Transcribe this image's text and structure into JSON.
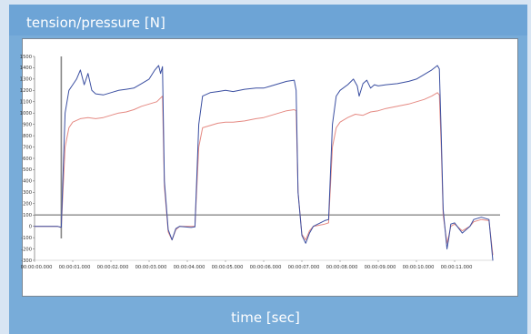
{
  "colors": {
    "background": "#d8e5f3",
    "panel": "#78acd9",
    "plot_bg": "#ffffff",
    "tension": "#3b4fa1",
    "pressure": "#e58a83",
    "reference": "#888888"
  },
  "chart_data": {
    "type": "line",
    "title": "",
    "ylabel": "tension/pressure [N]",
    "xlabel": "time [sec]",
    "ylim": [
      -300,
      1500
    ],
    "xlim": [
      0,
      12
    ],
    "y_ticks": [
      1500,
      1400,
      1300,
      1200,
      1100,
      1000,
      900,
      800,
      700,
      600,
      500,
      400,
      300,
      200,
      100,
      0,
      -100,
      -200,
      -300
    ],
    "x_ticks": [
      {
        "value": 0,
        "label": "00:00:00.000"
      },
      {
        "value": 1,
        "label": "00:00:01.000"
      },
      {
        "value": 2,
        "label": "00:00:02.000"
      },
      {
        "value": 3,
        "label": "00:00:03.000"
      },
      {
        "value": 4,
        "label": "00:00:04.000"
      },
      {
        "value": 5,
        "label": "00:00:05.000"
      },
      {
        "value": 6,
        "label": "00:00:06.000"
      },
      {
        "value": 7,
        "label": "00:00:07.000"
      },
      {
        "value": 8,
        "label": "00:00:08.000"
      },
      {
        "value": 9,
        "label": "00:00:09.000"
      },
      {
        "value": 10,
        "label": "00:00:10.000"
      },
      {
        "value": 11,
        "label": "00:00:11.000"
      }
    ],
    "reference_line": 100,
    "cursor_x": 0.7,
    "grid": false,
    "series": [
      {
        "color": "#3b4fa1",
        "points": [
          [
            0,
            0
          ],
          [
            0.6,
            0
          ],
          [
            0.7,
            -10
          ],
          [
            0.8,
            1000
          ],
          [
            0.9,
            1200
          ],
          [
            1.0,
            1250
          ],
          [
            1.1,
            1300
          ],
          [
            1.2,
            1380
          ],
          [
            1.3,
            1250
          ],
          [
            1.4,
            1350
          ],
          [
            1.5,
            1200
          ],
          [
            1.6,
            1170
          ],
          [
            1.8,
            1160
          ],
          [
            2.0,
            1180
          ],
          [
            2.2,
            1200
          ],
          [
            2.4,
            1210
          ],
          [
            2.6,
            1220
          ],
          [
            2.8,
            1260
          ],
          [
            3.0,
            1300
          ],
          [
            3.15,
            1380
          ],
          [
            3.25,
            1420
          ],
          [
            3.3,
            1350
          ],
          [
            3.35,
            1410
          ],
          [
            3.4,
            400
          ],
          [
            3.5,
            -30
          ],
          [
            3.6,
            -120
          ],
          [
            3.7,
            -20
          ],
          [
            3.8,
            0
          ],
          [
            4.1,
            -10
          ],
          [
            4.2,
            -5
          ],
          [
            4.3,
            900
          ],
          [
            4.4,
            1150
          ],
          [
            4.6,
            1180
          ],
          [
            4.8,
            1190
          ],
          [
            5.0,
            1200
          ],
          [
            5.2,
            1190
          ],
          [
            5.5,
            1210
          ],
          [
            5.8,
            1220
          ],
          [
            6.0,
            1220
          ],
          [
            6.2,
            1240
          ],
          [
            6.4,
            1260
          ],
          [
            6.6,
            1280
          ],
          [
            6.8,
            1290
          ],
          [
            6.85,
            1200
          ],
          [
            6.9,
            300
          ],
          [
            7.0,
            -80
          ],
          [
            7.1,
            -150
          ],
          [
            7.2,
            -60
          ],
          [
            7.3,
            0
          ],
          [
            7.6,
            50
          ],
          [
            7.7,
            60
          ],
          [
            7.8,
            900
          ],
          [
            7.9,
            1150
          ],
          [
            8.0,
            1200
          ],
          [
            8.2,
            1250
          ],
          [
            8.35,
            1300
          ],
          [
            8.45,
            1240
          ],
          [
            8.5,
            1150
          ],
          [
            8.6,
            1260
          ],
          [
            8.7,
            1290
          ],
          [
            8.8,
            1220
          ],
          [
            8.9,
            1250
          ],
          [
            9.0,
            1240
          ],
          [
            9.2,
            1250
          ],
          [
            9.5,
            1260
          ],
          [
            9.8,
            1280
          ],
          [
            10.0,
            1300
          ],
          [
            10.2,
            1340
          ],
          [
            10.4,
            1380
          ],
          [
            10.55,
            1420
          ],
          [
            10.6,
            1390
          ],
          [
            10.65,
            800
          ],
          [
            10.7,
            150
          ],
          [
            10.8,
            -200
          ],
          [
            10.85,
            -100
          ],
          [
            10.9,
            20
          ],
          [
            11.0,
            30
          ],
          [
            11.2,
            -60
          ],
          [
            11.4,
            0
          ],
          [
            11.5,
            60
          ],
          [
            11.7,
            80
          ],
          [
            11.9,
            60
          ],
          [
            12.0,
            -300
          ]
        ]
      },
      {
        "color": "#e58a83",
        "points": [
          [
            0,
            0
          ],
          [
            0.6,
            0
          ],
          [
            0.7,
            -10
          ],
          [
            0.8,
            700
          ],
          [
            0.9,
            870
          ],
          [
            1.0,
            920
          ],
          [
            1.2,
            950
          ],
          [
            1.4,
            960
          ],
          [
            1.6,
            950
          ],
          [
            1.8,
            960
          ],
          [
            2.0,
            980
          ],
          [
            2.2,
            1000
          ],
          [
            2.4,
            1010
          ],
          [
            2.6,
            1030
          ],
          [
            2.8,
            1060
          ],
          [
            3.0,
            1080
          ],
          [
            3.2,
            1100
          ],
          [
            3.35,
            1150
          ],
          [
            3.4,
            350
          ],
          [
            3.5,
            -50
          ],
          [
            3.6,
            -120
          ],
          [
            3.7,
            -30
          ],
          [
            3.8,
            0
          ],
          [
            4.1,
            0
          ],
          [
            4.2,
            0
          ],
          [
            4.3,
            700
          ],
          [
            4.4,
            870
          ],
          [
            4.6,
            890
          ],
          [
            4.8,
            910
          ],
          [
            5.0,
            920
          ],
          [
            5.2,
            920
          ],
          [
            5.5,
            930
          ],
          [
            5.8,
            950
          ],
          [
            6.0,
            960
          ],
          [
            6.2,
            980
          ],
          [
            6.4,
            1000
          ],
          [
            6.6,
            1020
          ],
          [
            6.8,
            1030
          ],
          [
            6.85,
            1020
          ],
          [
            6.9,
            300
          ],
          [
            7.0,
            -70
          ],
          [
            7.1,
            -120
          ],
          [
            7.2,
            -40
          ],
          [
            7.3,
            0
          ],
          [
            7.6,
            20
          ],
          [
            7.7,
            30
          ],
          [
            7.8,
            700
          ],
          [
            7.9,
            870
          ],
          [
            8.0,
            920
          ],
          [
            8.2,
            960
          ],
          [
            8.4,
            990
          ],
          [
            8.6,
            980
          ],
          [
            8.8,
            1010
          ],
          [
            9.0,
            1020
          ],
          [
            9.2,
            1040
          ],
          [
            9.5,
            1060
          ],
          [
            9.8,
            1080
          ],
          [
            10.0,
            1100
          ],
          [
            10.2,
            1120
          ],
          [
            10.4,
            1150
          ],
          [
            10.55,
            1180
          ],
          [
            10.6,
            1160
          ],
          [
            10.65,
            700
          ],
          [
            10.7,
            100
          ],
          [
            10.8,
            -150
          ],
          [
            10.85,
            -80
          ],
          [
            10.9,
            0
          ],
          [
            11.0,
            20
          ],
          [
            11.2,
            -40
          ],
          [
            11.4,
            0
          ],
          [
            11.5,
            40
          ],
          [
            11.7,
            60
          ],
          [
            11.9,
            50
          ],
          [
            12.0,
            -250
          ]
        ]
      }
    ]
  }
}
